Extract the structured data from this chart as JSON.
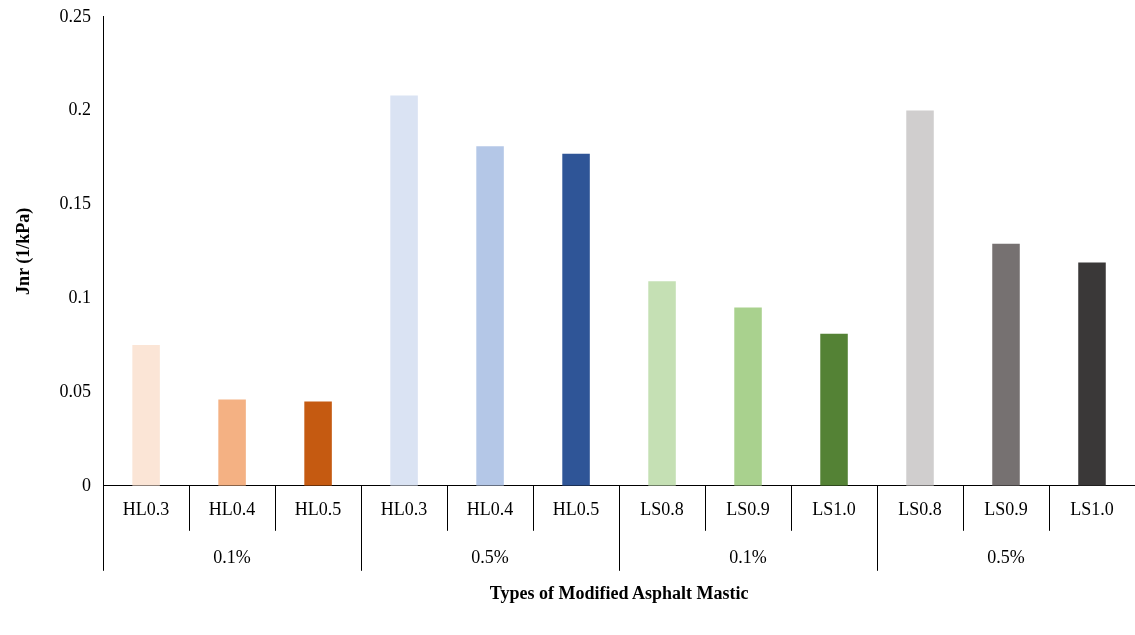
{
  "chart_data": {
    "type": "bar",
    "xlabel": "Types of Modified Asphalt Mastic",
    "ylabel": "Jnr (1/kPa)",
    "categories": [
      "HL0.3",
      "HL0.4",
      "HL0.5",
      "HL0.3",
      "HL0.4",
      "HL0.5",
      "LS0.8",
      "LS0.9",
      "LS1.0",
      "LS0.8",
      "LS0.9",
      "LS1.0"
    ],
    "values": [
      0.075,
      0.046,
      0.045,
      0.208,
      0.181,
      0.177,
      0.109,
      0.095,
      0.081,
      0.2,
      0.129,
      0.119
    ],
    "colors": [
      "#fbe5d6",
      "#f4b183",
      "#c55a11",
      "#dae3f3",
      "#b4c7e7",
      "#2f5597",
      "#c5e0b4",
      "#a9d18e",
      "#548235",
      "#d0cece",
      "#767171",
      "#3a3838"
    ],
    "annotations": [
      "0.1%",
      "0.5%",
      "0.1%",
      "0.5%"
    ],
    "ylim": [
      0,
      0.25
    ],
    "yticks": [
      0,
      0.05,
      0.1,
      0.15,
      0.2,
      0.25
    ],
    "grid": false,
    "legend": false
  }
}
